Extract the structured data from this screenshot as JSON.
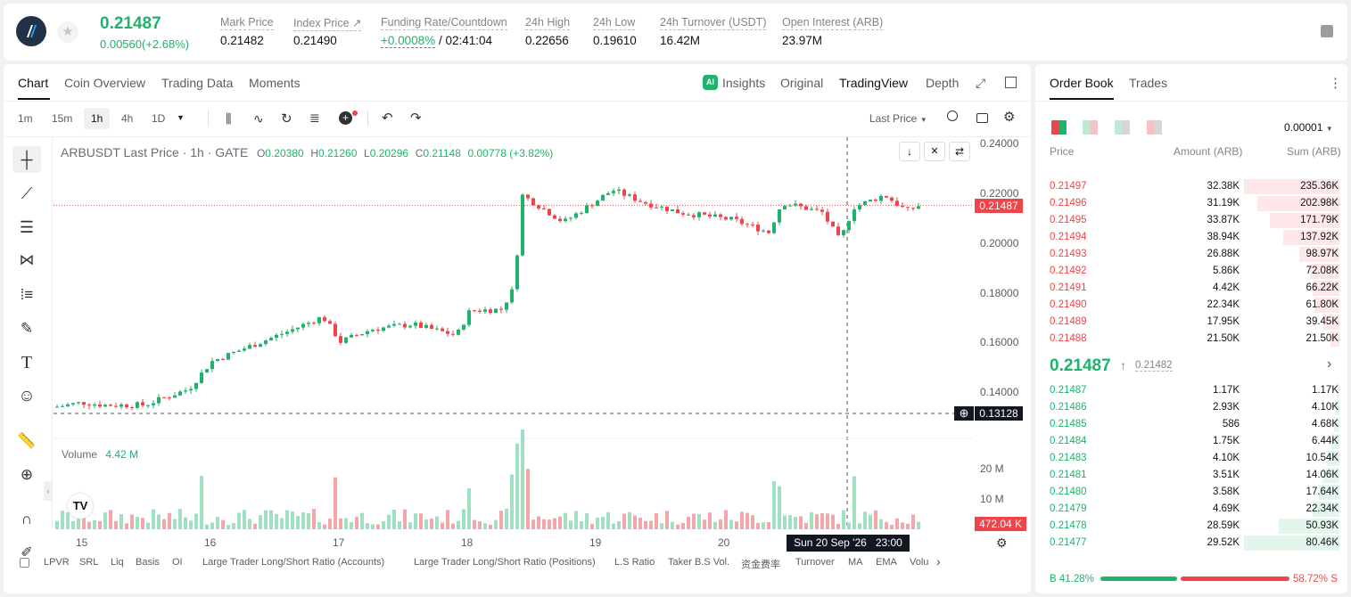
{
  "header": {
    "price": "0.21487",
    "change": "0.00560(+2.68%)",
    "stats": [
      {
        "label": "Mark Price",
        "value": "0.21482"
      },
      {
        "label": "Index Price ↗",
        "value": "0.21490"
      },
      {
        "label": "Funding Rate/Countdown",
        "value": "+0.0008%",
        "value2": " / 02:41:04"
      },
      {
        "label": "24h High",
        "value": "0.22656"
      },
      {
        "label": "24h Low",
        "value": "0.19610"
      },
      {
        "label": "24h Turnover (USDT)",
        "value": "16.42M"
      },
      {
        "label": "Open Interest (ARB)",
        "value": "23.97M"
      }
    ]
  },
  "chart_tabs": [
    "Chart",
    "Coin Overview",
    "Trading Data",
    "Moments"
  ],
  "chart_modes": [
    "Insights",
    "Original",
    "TradingView",
    "Depth"
  ],
  "intervals": [
    "1m",
    "15m",
    "1h",
    "4h",
    "1D"
  ],
  "price_type": "Last Price",
  "legend": {
    "symbol": "ARBUSDT Last Price · 1h · GATE",
    "o": "O",
    "ov": "0.20380",
    "h": "H",
    "hv": "0.21260",
    "l": "L",
    "lv": "0.20296",
    "c": "C",
    "cv": "0.21148",
    "chg": "0.00778 (+3.82%)"
  },
  "volume": {
    "label": "Volume",
    "value": "4.42 M"
  },
  "y_labels": [
    "0.24000",
    "0.22000",
    "0.20000",
    "0.18000",
    "0.16000",
    "0.14000"
  ],
  "vol_labels": [
    "20 M",
    "10 M"
  ],
  "price_tag": "0.21487",
  "cross_tag": "0.13128",
  "vol_tag": "472.04 K",
  "x_labels": [
    "15",
    "16",
    "17",
    "18",
    "19",
    "20"
  ],
  "time_tag": "Sun 20 Sep '26   23:00",
  "indicators": [
    "LPVR",
    "SRL",
    "Liq",
    "Basis",
    "OI",
    "Large Trader Long/Short Ratio (Accounts)",
    "Large Trader Long/Short Ratio (Positions)",
    "L.S Ratio",
    "Taker B.S Vol.",
    "资金费率",
    "Turnover",
    "MA",
    "EMA",
    "Volu"
  ],
  "orderbook": {
    "tabs": [
      "Order Book",
      "Trades"
    ],
    "precision": "0.00001",
    "cols": [
      "Price",
      "Amount (ARB)",
      "Sum (ARB)"
    ],
    "asks": [
      [
        "0.21497",
        "32.38K",
        "235.36K"
      ],
      [
        "0.21496",
        "31.19K",
        "202.98K"
      ],
      [
        "0.21495",
        "33.87K",
        "171.79K"
      ],
      [
        "0.21494",
        "38.94K",
        "137.92K"
      ],
      [
        "0.21493",
        "26.88K",
        "98.97K"
      ],
      [
        "0.21492",
        "5.86K",
        "72.08K"
      ],
      [
        "0.21491",
        "4.42K",
        "66.22K"
      ],
      [
        "0.21490",
        "22.34K",
        "61.80K"
      ],
      [
        "0.21489",
        "17.95K",
        "39.45K"
      ],
      [
        "0.21488",
        "21.50K",
        "21.50K"
      ]
    ],
    "mid": "0.21487",
    "mark": "0.21482",
    "bids": [
      [
        "0.21487",
        "1.17K",
        "1.17K"
      ],
      [
        "0.21486",
        "2.93K",
        "4.10K"
      ],
      [
        "0.21485",
        "586",
        "4.68K"
      ],
      [
        "0.21484",
        "1.75K",
        "6.44K"
      ],
      [
        "0.21483",
        "4.10K",
        "10.54K"
      ],
      [
        "0.21481",
        "3.51K",
        "14.06K"
      ],
      [
        "0.21480",
        "3.58K",
        "17.64K"
      ],
      [
        "0.21479",
        "4.69K",
        "22.34K"
      ],
      [
        "0.21478",
        "28.59K",
        "50.93K"
      ],
      [
        "0.21477",
        "29.52K",
        "80.46K"
      ]
    ],
    "buy": "B 41.28%",
    "sell": "58.72% S"
  },
  "colors": {
    "up": "#20b26c",
    "down": "#ef454a"
  }
}
